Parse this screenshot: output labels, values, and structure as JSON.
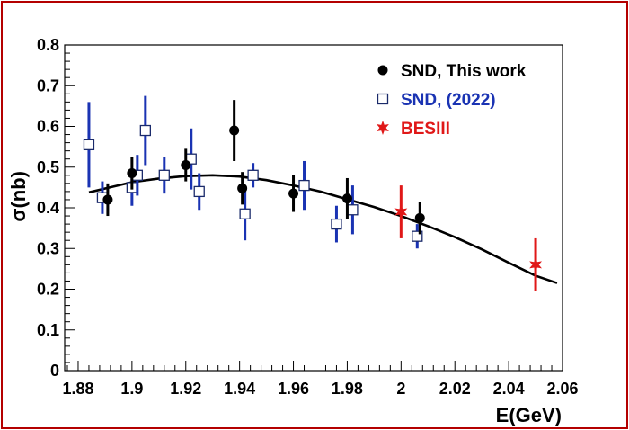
{
  "chart_data": {
    "type": "scatter",
    "xlabel": "E(GeV)",
    "ylabel": "σ(nb)",
    "xlim": [
      1.875,
      2.06
    ],
    "ylim": [
      0,
      0.8
    ],
    "x_ticks": [
      "1.88",
      "1.9",
      "1.92",
      "1.94",
      "1.96",
      "1.98",
      "2",
      "2.02",
      "2.04",
      "2.06"
    ],
    "y_ticks": [
      "0",
      "0.1",
      "0.2",
      "0.3",
      "0.4",
      "0.5",
      "0.6",
      "0.7",
      "0.8"
    ],
    "grid": false,
    "legend_position": "top-right",
    "series": [
      {
        "name": "SND, This work",
        "marker": "filled-circle",
        "color": "#000000",
        "points": [
          {
            "x": 1.891,
            "y": 0.42,
            "err": 0.04
          },
          {
            "x": 1.9,
            "y": 0.485,
            "err": 0.04
          },
          {
            "x": 1.92,
            "y": 0.505,
            "err": 0.04
          },
          {
            "x": 1.938,
            "y": 0.59,
            "err": 0.075
          },
          {
            "x": 1.941,
            "y": 0.448,
            "err": 0.04
          },
          {
            "x": 1.96,
            "y": 0.435,
            "err": 0.045
          },
          {
            "x": 1.98,
            "y": 0.423,
            "err": 0.05
          },
          {
            "x": 2.007,
            "y": 0.375,
            "err": 0.04
          }
        ]
      },
      {
        "name": "SND, (2022)",
        "marker": "open-square",
        "color": "#1a33b3",
        "points": [
          {
            "x": 1.884,
            "y": 0.555,
            "err": 0.105
          },
          {
            "x": 1.889,
            "y": 0.425,
            "err": 0.04
          },
          {
            "x": 1.9,
            "y": 0.45,
            "err": 0.045
          },
          {
            "x": 1.902,
            "y": 0.48,
            "err": 0.05
          },
          {
            "x": 1.905,
            "y": 0.59,
            "err": 0.085
          },
          {
            "x": 1.912,
            "y": 0.48,
            "err": 0.045
          },
          {
            "x": 1.922,
            "y": 0.52,
            "err": 0.075
          },
          {
            "x": 1.925,
            "y": 0.44,
            "err": 0.045
          },
          {
            "x": 1.942,
            "y": 0.385,
            "err": 0.065
          },
          {
            "x": 1.945,
            "y": 0.48,
            "err": 0.03
          },
          {
            "x": 1.964,
            "y": 0.455,
            "err": 0.06
          },
          {
            "x": 1.976,
            "y": 0.36,
            "err": 0.045
          },
          {
            "x": 1.982,
            "y": 0.395,
            "err": 0.06
          },
          {
            "x": 2.006,
            "y": 0.33,
            "err": 0.03
          }
        ]
      },
      {
        "name": "BESIII",
        "marker": "star",
        "color": "#e01818",
        "points": [
          {
            "x": 2.0,
            "y": 0.39,
            "err": 0.065
          },
          {
            "x": 2.05,
            "y": 0.26,
            "err": 0.065
          }
        ]
      }
    ],
    "fit_curve": {
      "color": "#000000",
      "points": [
        [
          1.884,
          0.438
        ],
        [
          1.9,
          0.463
        ],
        [
          1.91,
          0.472
        ],
        [
          1.92,
          0.478
        ],
        [
          1.93,
          0.48
        ],
        [
          1.94,
          0.477
        ],
        [
          1.95,
          0.468
        ],
        [
          1.96,
          0.455
        ],
        [
          1.97,
          0.44
        ],
        [
          1.98,
          0.421
        ],
        [
          1.99,
          0.402
        ],
        [
          2.0,
          0.38
        ],
        [
          2.01,
          0.355
        ],
        [
          2.02,
          0.328
        ],
        [
          2.03,
          0.298
        ],
        [
          2.04,
          0.265
        ],
        [
          2.05,
          0.233
        ],
        [
          2.058,
          0.215
        ]
      ]
    }
  }
}
